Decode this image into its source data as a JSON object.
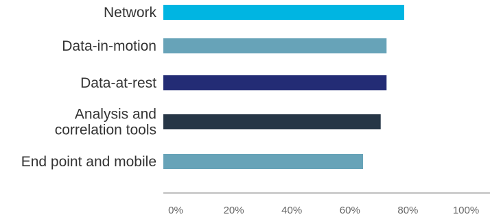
{
  "chart_data": {
    "type": "bar",
    "orientation": "horizontal",
    "title": "",
    "xlabel": "",
    "ylabel": "",
    "categories": [
      [
        "Network"
      ],
      [
        "Data-in-motion"
      ],
      [
        "Data-at-rest"
      ],
      [
        "Analysis and",
        "correlation tools"
      ],
      [
        "End point and mobile"
      ]
    ],
    "values": [
      82,
      76,
      76,
      74,
      68
    ],
    "colors": [
      "#00b5e2",
      "#67a3b8",
      "#232c75",
      "#263646",
      "#67a3b8"
    ],
    "xlim": [
      0,
      100
    ],
    "xticks": [
      "0%",
      "20%",
      "40%",
      "60%",
      "80%",
      "100%"
    ],
    "grid": false,
    "legend": "none"
  }
}
